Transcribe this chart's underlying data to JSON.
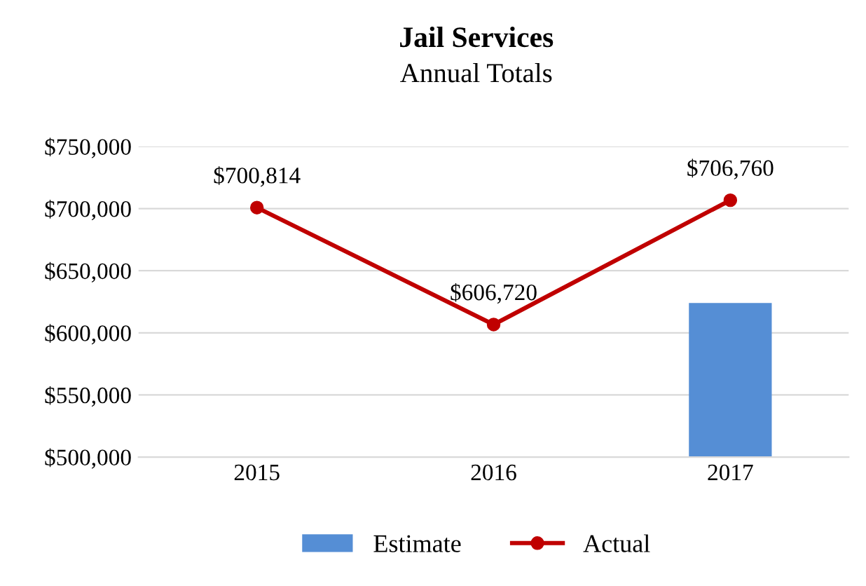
{
  "chart_data": {
    "type": "bar",
    "title": "Jail Services",
    "subtitle": "Annual Totals",
    "categories": [
      "2015",
      "2016",
      "2017"
    ],
    "series": [
      {
        "name": "Estimate",
        "color": "#558ed5",
        "values": [
          null,
          null,
          624000
        ]
      },
      {
        "name": "Actual",
        "type": "line",
        "color": "#c00000",
        "values": [
          700814,
          606720,
          706760
        ],
        "value_labels": [
          "$700,814",
          "$606,720",
          "$706,760"
        ],
        "marker": "circle"
      }
    ],
    "ylim": [
      500000,
      750000
    ],
    "yticks": [
      {
        "value": 500000,
        "label": "$500,000"
      },
      {
        "value": 550000,
        "label": "$550,000"
      },
      {
        "value": 600000,
        "label": "$600,000"
      },
      {
        "value": 650000,
        "label": "$650,000"
      },
      {
        "value": 700000,
        "label": "$700,000"
      },
      {
        "value": 750000,
        "label": "$750,000"
      }
    ],
    "grid": "y",
    "legend": "bottom"
  }
}
